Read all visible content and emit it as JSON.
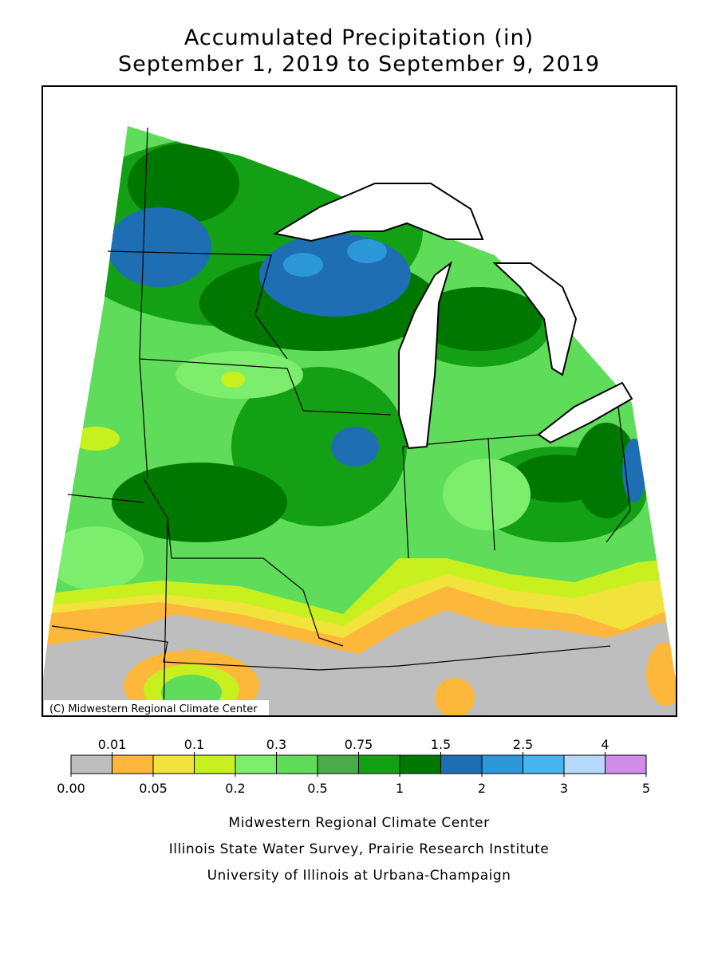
{
  "title": [
    "Accumulated Precipitation (in)",
    "September 1, 2019 to September 9, 2019"
  ],
  "map": {
    "copyright": "(C) Midwestern Regional Climate Center"
  },
  "legend": {
    "colors": [
      "#bebebe",
      "#fdb73b",
      "#f2e23c",
      "#c8f01e",
      "#7ded6e",
      "#5edc5a",
      "#4aab4a",
      "#14a014",
      "#007800",
      "#1e6eb4",
      "#2c98d8",
      "#48b6ee",
      "#b6d8fa",
      "#d08ce8"
    ],
    "ticks": [
      {
        "value": 0,
        "label": "0.00"
      },
      0.01,
      0.05,
      0.1,
      0.2,
      0.3,
      0.5,
      0.75,
      1,
      1.5,
      2,
      2.5,
      3,
      4,
      5
    ]
  },
  "credits": [
    "Midwestern Regional Climate Center",
    "Illinois State Water Survey, Prairie Research Institute",
    "University of Illinois at Urbana-Champaign"
  ]
}
